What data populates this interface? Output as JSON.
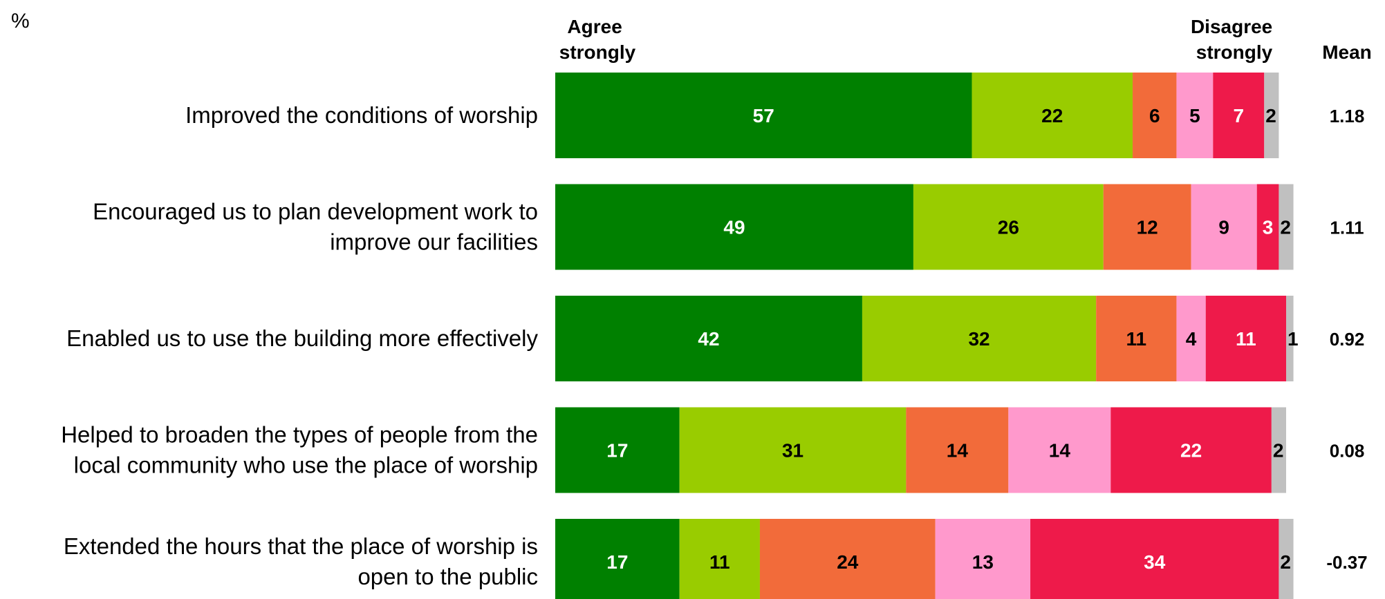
{
  "chart_data": {
    "type": "bar",
    "orientation": "horizontal",
    "stacked": true,
    "unit_label": "%",
    "header_left": [
      "Agree",
      "strongly"
    ],
    "header_right": [
      "Disagree",
      "strongly"
    ],
    "mean_header": "Mean",
    "grid": false,
    "legend": "none",
    "categories": [
      [
        "Improved the conditions of worship"
      ],
      [
        "Encouraged us to plan development work to",
        "improve our facilities"
      ],
      [
        "Enabled us to use the building more effectively"
      ],
      [
        "Helped to broaden the types of people from the",
        "local community who use the place of worship"
      ],
      [
        "Extended the hours that the place of worship is",
        "open to the public"
      ]
    ],
    "series": [
      {
        "values": [
          57,
          49,
          42,
          17,
          17
        ],
        "color": "#008000",
        "text_color": "#ffffff"
      },
      {
        "values": [
          22,
          26,
          32,
          31,
          11
        ],
        "color": "#99cc00",
        "text_color": "#000000"
      },
      {
        "values": [
          6,
          12,
          11,
          14,
          24
        ],
        "color": "#f26b3a",
        "text_color": "#000000"
      },
      {
        "values": [
          5,
          9,
          4,
          14,
          13
        ],
        "color": "#ff99cc",
        "text_color": "#000000"
      },
      {
        "values": [
          7,
          3,
          11,
          22,
          34
        ],
        "color": "#ee1a4a",
        "text_color": "#ffffff"
      },
      {
        "values": [
          2,
          2,
          1,
          2,
          2
        ],
        "color": "#c0c0c0",
        "text_color": "#000000"
      }
    ],
    "means": [
      "1.18",
      "1.11",
      "0.92",
      "0.08",
      "-0.37"
    ]
  }
}
